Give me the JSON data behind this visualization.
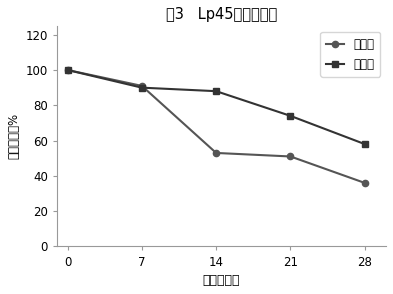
{
  "title": "图3   Lp45稳定性数据",
  "xlabel": "时间（天）",
  "ylabel": "细胞存活率%",
  "x": [
    0,
    7,
    14,
    21,
    28
  ],
  "control_y": [
    100,
    91,
    53,
    51,
    36
  ],
  "experiment_y": [
    100,
    90,
    88,
    74,
    58
  ],
  "control_label": "对照组",
  "experiment_label": "实验组",
  "control_color": "#555555",
  "experiment_color": "#333333",
  "ylim": [
    0,
    125
  ],
  "yticks": [
    0,
    20,
    40,
    60,
    80,
    100,
    120
  ],
  "xlim": [
    -1,
    30
  ],
  "bg_color": "#ffffff"
}
